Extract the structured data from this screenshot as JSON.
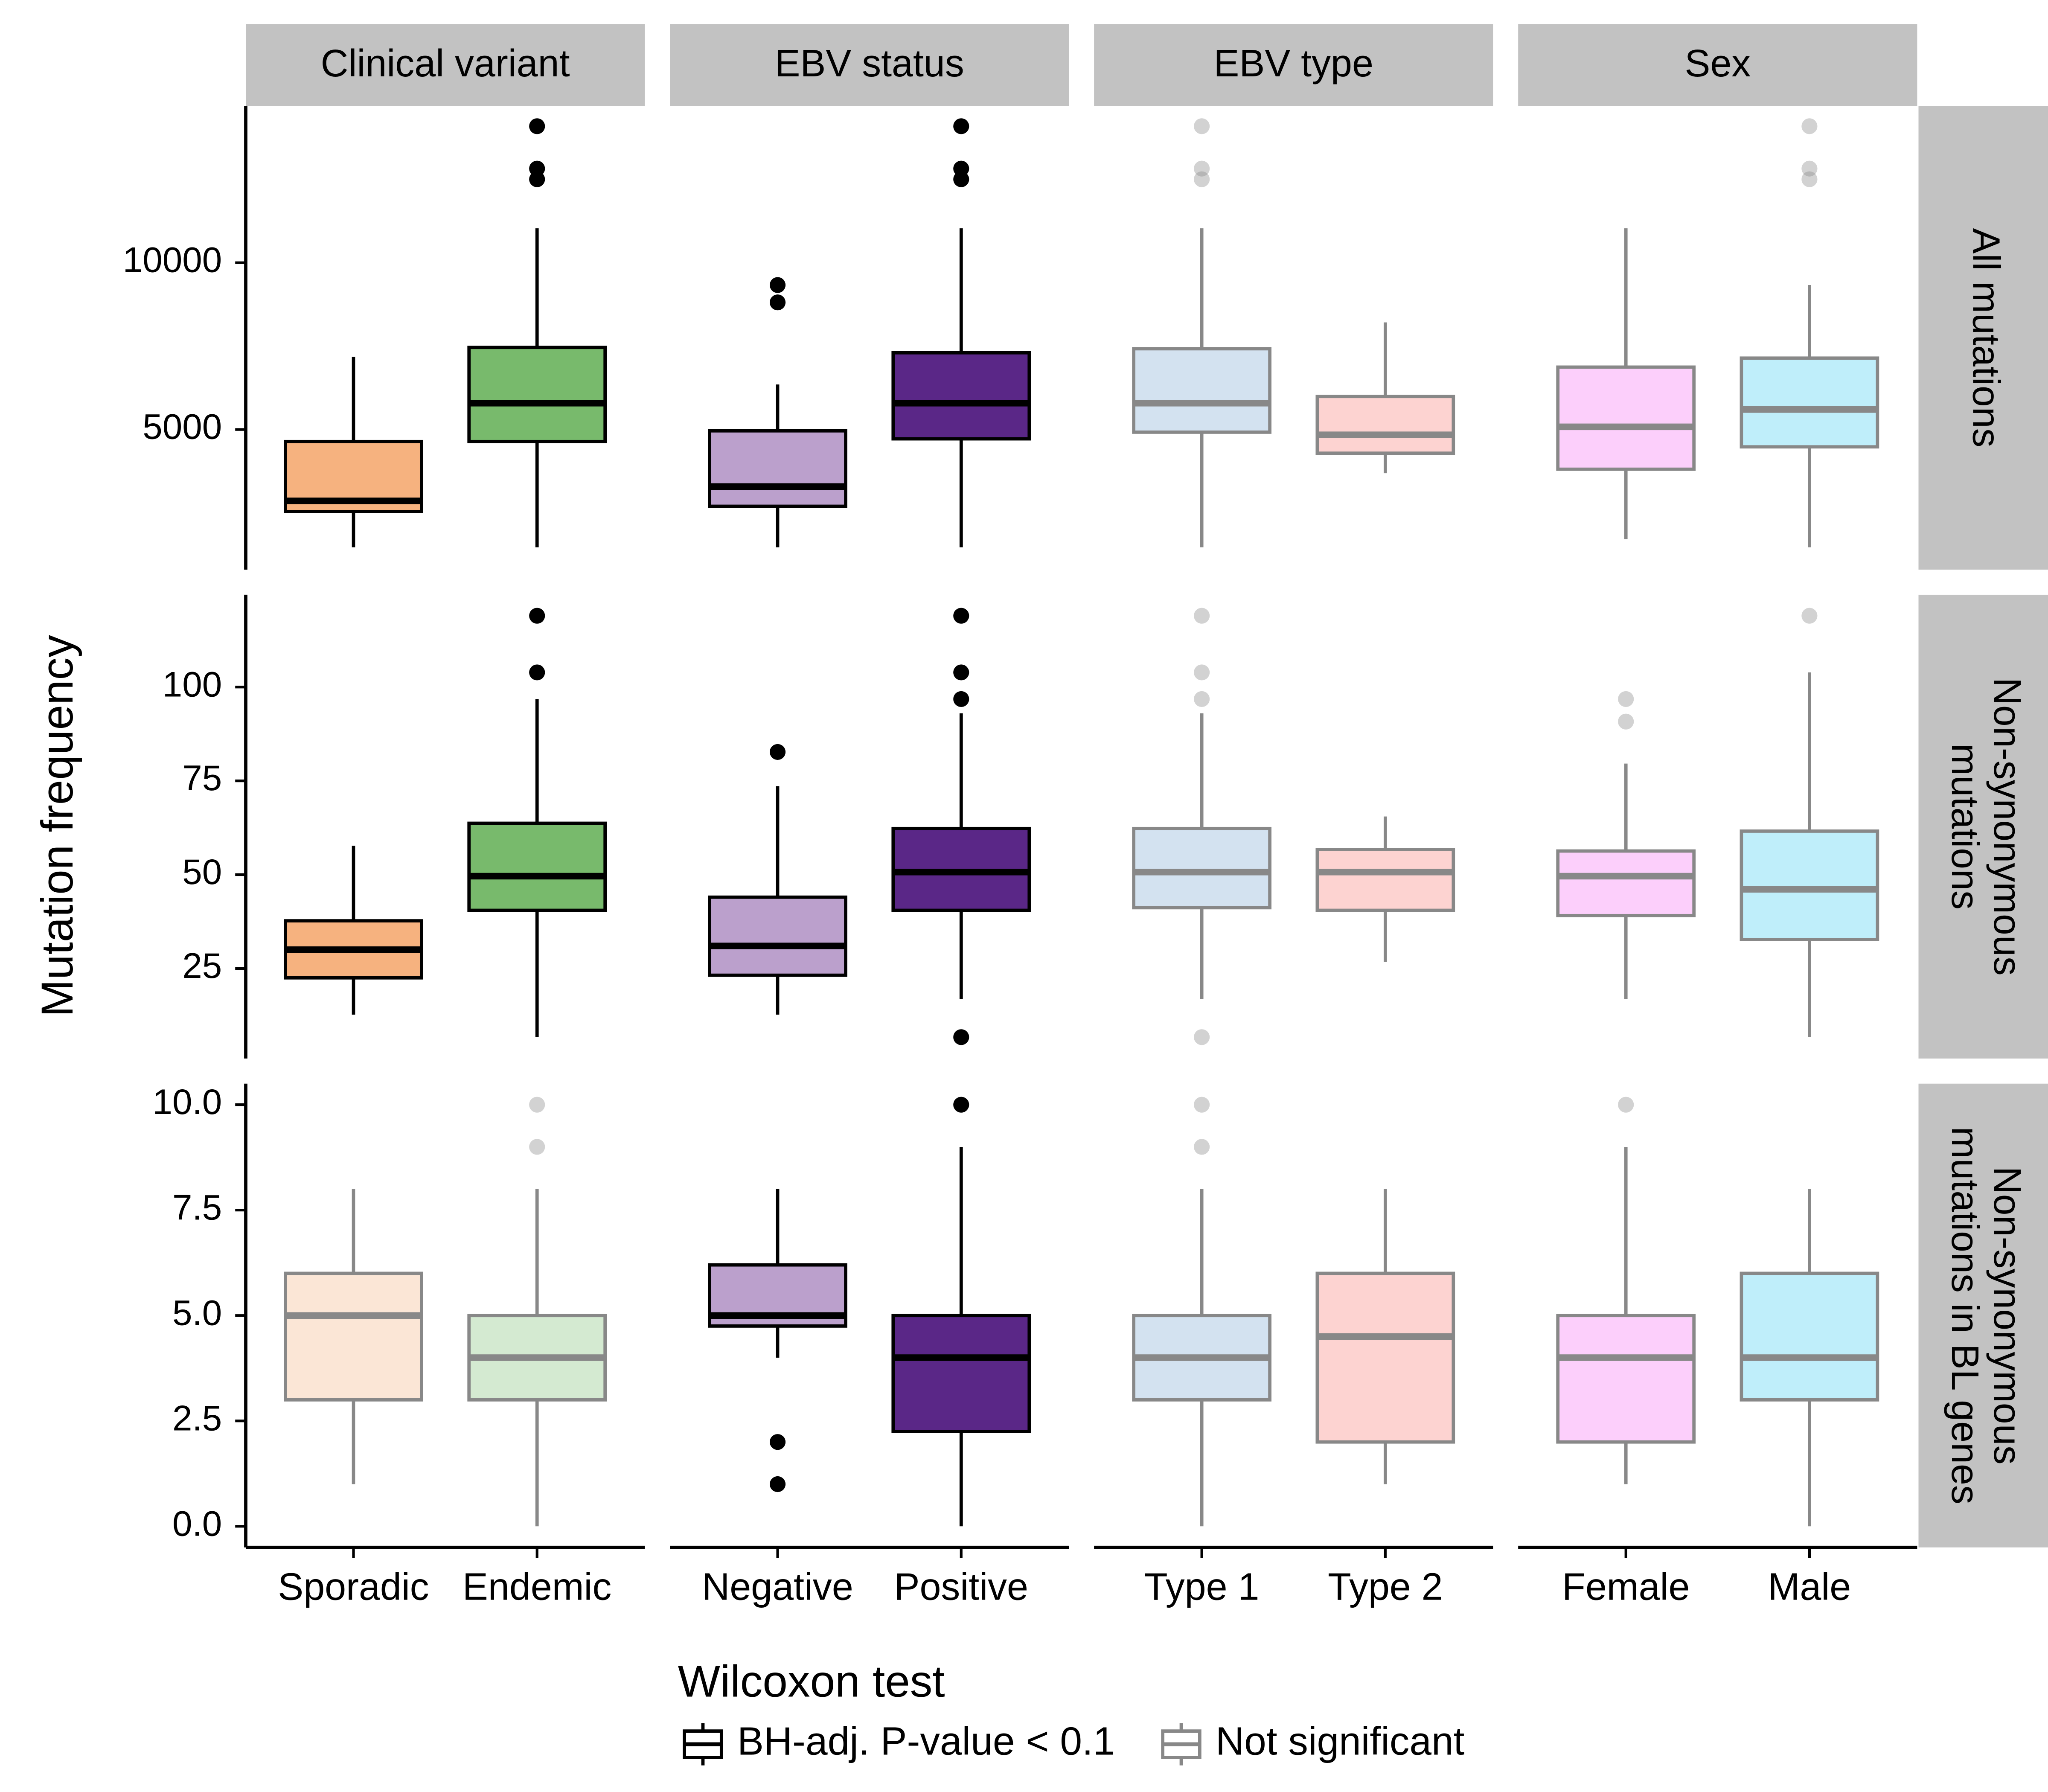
{
  "chart_data": {
    "type": "box",
    "y_label": "Mutation frequency",
    "columns": [
      {
        "facet": "Clinical variant",
        "categories": [
          "Sporadic",
          "Endemic"
        ]
      },
      {
        "facet": "EBV status",
        "categories": [
          "Negative",
          "Positive"
        ]
      },
      {
        "facet": "EBV type",
        "categories": [
          "Type 1",
          "Type 2"
        ]
      },
      {
        "facet": "Sex",
        "categories": [
          "Female",
          "Male"
        ]
      }
    ],
    "rows": [
      {
        "label": [
          "All mutations"
        ],
        "ylim": [
          800,
          14700
        ],
        "yticks": [
          5000,
          10000
        ],
        "panels": [
          {
            "significant": true,
            "boxes": [
              {
                "color": "#f6b27f",
                "min": 1470,
                "q1": 2540,
                "median": 2860,
                "q3": 4640,
                "max": 7180
              },
              {
                "color": "#78ba6c",
                "min": 1470,
                "q1": 4640,
                "median": 5790,
                "q3": 7460,
                "max": 11030,
                "outliers": [
                  14090,
                  12820,
                  12500
                ]
              }
            ]
          },
          {
            "significant": true,
            "boxes": [
              {
                "color": "#bba0cc",
                "min": 1470,
                "q1": 2700,
                "median": 3290,
                "q3": 4960,
                "max": 6350,
                "outliers": [
                  9330,
                  8810
                ]
              },
              {
                "color": "#5a2787",
                "min": 1470,
                "q1": 4720,
                "median": 5790,
                "q3": 7300,
                "max": 11030,
                "outliers": [
                  14090,
                  12820,
                  12500
                ]
              }
            ]
          },
          {
            "significant": false,
            "boxes": [
              {
                "color": "#d3e2f0",
                "min": 1470,
                "q1": 4920,
                "median": 5790,
                "q3": 7420,
                "max": 11030,
                "outliers": [
                  14090,
                  12820,
                  12500
                ]
              },
              {
                "color": "#fdd3d1",
                "min": 3690,
                "q1": 4290,
                "median": 4840,
                "q3": 5990,
                "max": 8210
              }
            ]
          },
          {
            "significant": false,
            "boxes": [
              {
                "color": "#fccffb",
                "min": 1710,
                "q1": 3810,
                "median": 5080,
                "q3": 6870,
                "max": 11030
              },
              {
                "color": "#bfeefa",
                "min": 1470,
                "q1": 4480,
                "median": 5600,
                "q3": 7140,
                "max": 9330,
                "outliers": [
                  14090,
                  12820,
                  12500
                ]
              }
            ]
          }
        ]
      },
      {
        "label": [
          "Non-synonymous",
          "mutations"
        ],
        "ylim": [
          1,
          124.6
        ],
        "yticks": [
          25,
          50,
          75,
          100
        ],
        "panels": [
          {
            "significant": true,
            "boxes": [
              {
                "color": "#f6b27f",
                "min": 12.7,
                "q1": 22.5,
                "median": 30,
                "q3": 37.7,
                "max": 57.7
              },
              {
                "color": "#78ba6c",
                "min": 6.7,
                "q1": 40.5,
                "median": 49.6,
                "q3": 63.7,
                "max": 96.8,
                "outliers": [
                  119,
                  103.9
                ]
              }
            ]
          },
          {
            "significant": true,
            "boxes": [
              {
                "color": "#bba0cc",
                "min": 12.7,
                "q1": 23.2,
                "median": 31,
                "q3": 44,
                "max": 73.6,
                "outliers": [
                  82.7
                ]
              },
              {
                "color": "#5a2787",
                "min": 16.9,
                "q1": 40.5,
                "median": 50.7,
                "q3": 62.3,
                "max": 93,
                "outliers": [
                  119,
                  103.9,
                  96.8,
                  6.7
                ]
              }
            ]
          },
          {
            "significant": false,
            "boxes": [
              {
                "color": "#d3e2f0",
                "min": 16.9,
                "q1": 41.2,
                "median": 50.7,
                "q3": 62.3,
                "max": 93,
                "outliers": [
                  119,
                  103.9,
                  96.8,
                  6.7
                ]
              },
              {
                "color": "#fdd3d1",
                "min": 26.8,
                "q1": 40.5,
                "median": 50.7,
                "q3": 56.7,
                "max": 65.5
              }
            ]
          },
          {
            "significant": false,
            "boxes": [
              {
                "color": "#fccffb",
                "min": 16.9,
                "q1": 39.1,
                "median": 49.6,
                "q3": 56.3,
                "max": 79.6,
                "outliers": [
                  96.8,
                  90.8
                ]
              },
              {
                "color": "#bfeefa",
                "min": 6.7,
                "q1": 32.7,
                "median": 46.1,
                "q3": 61.6,
                "max": 103.9,
                "outliers": [
                  119
                ]
              }
            ]
          }
        ]
      },
      {
        "label": [
          "Non-synonymous",
          "mutations in BL genes"
        ],
        "ylim": [
          -0.5,
          10.5
        ],
        "yticks": [
          {
            "value": 0,
            "label": "0.0"
          },
          {
            "value": 2.5,
            "label": "2.5"
          },
          {
            "value": 5,
            "label": "5.0"
          },
          {
            "value": 7.5,
            "label": "7.5"
          },
          {
            "value": 10,
            "label": "10.0"
          }
        ],
        "panels": [
          {
            "significant": false,
            "boxes": [
              {
                "color": "#fbe6d6",
                "min": 1,
                "q1": 3,
                "median": 5,
                "q3": 6,
                "max": 8
              },
              {
                "color": "#d4ead1",
                "min": 0,
                "q1": 3,
                "median": 4,
                "q3": 5,
                "max": 8,
                "outliers": [
                  10,
                  9
                ]
              }
            ]
          },
          {
            "significant": true,
            "boxes": [
              {
                "color": "#bba0cc",
                "min": 4,
                "q1": 4.75,
                "median": 5,
                "q3": 6.2,
                "max": 8,
                "outliers": [
                  2,
                  1
                ]
              },
              {
                "color": "#5a2787",
                "min": 0,
                "q1": 2.25,
                "median": 4,
                "q3": 5,
                "max": 9,
                "outliers": [
                  10
                ]
              }
            ]
          },
          {
            "significant": false,
            "boxes": [
              {
                "color": "#d3e2f0",
                "min": 0,
                "q1": 3,
                "median": 4,
                "q3": 5,
                "max": 8,
                "outliers": [
                  10,
                  9
                ]
              },
              {
                "color": "#fdd3d1",
                "min": 1,
                "q1": 2,
                "median": 4.5,
                "q3": 6,
                "max": 8
              }
            ]
          },
          {
            "significant": false,
            "boxes": [
              {
                "color": "#fccffb",
                "min": 1,
                "q1": 2,
                "median": 4,
                "q3": 5,
                "max": 9,
                "outliers": [
                  10
                ]
              },
              {
                "color": "#bfeefa",
                "min": 0,
                "q1": 3,
                "median": 4,
                "q3": 6,
                "max": 8
              }
            ]
          }
        ]
      }
    ],
    "legend": {
      "title": "Wilcoxon test",
      "entries": [
        {
          "label": "BH-adj. P-value < 0.1",
          "stroke": "#000000"
        },
        {
          "label": "Not significant",
          "stroke": "#888888"
        }
      ]
    }
  }
}
